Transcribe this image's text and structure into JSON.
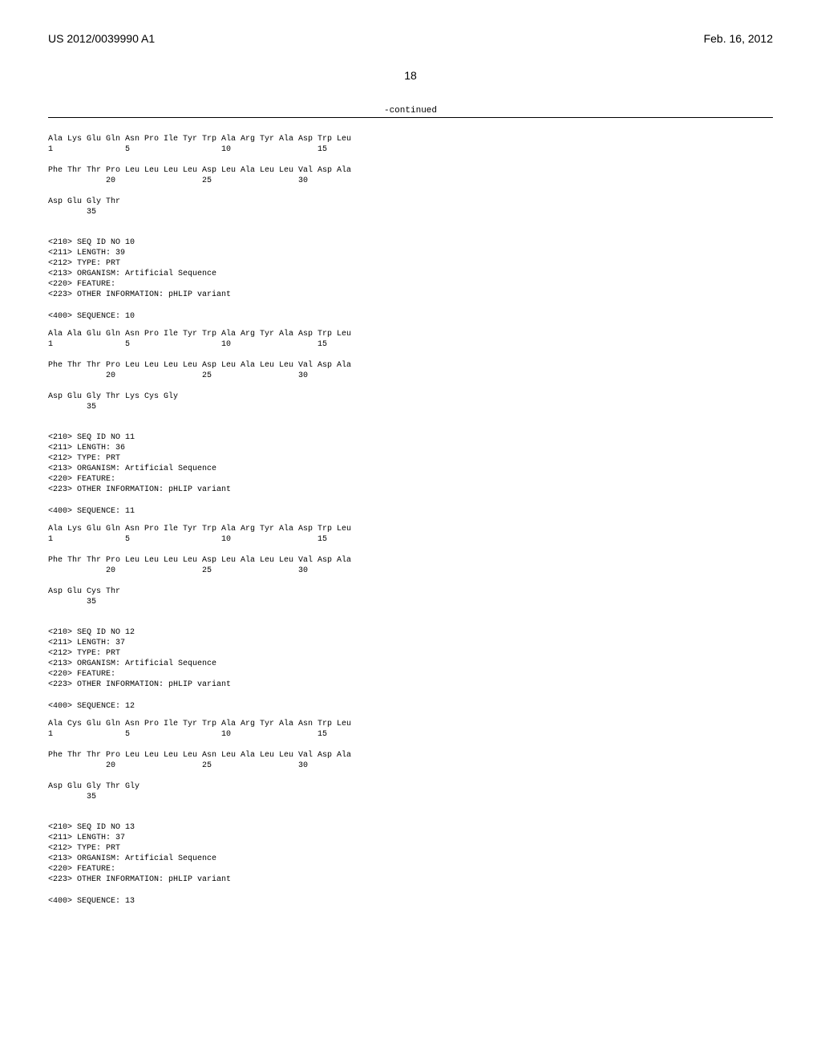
{
  "header": {
    "pub_number": "US 2012/0039990 A1",
    "date": "Feb. 16, 2012"
  },
  "page_number": "18",
  "continued_label": "-continued",
  "sequences": [
    {
      "lines": [
        "Ala Lys Glu Gln Asn Pro Ile Tyr Trp Ala Arg Tyr Ala Asp Trp Leu",
        "1               5                   10                  15",
        "",
        "Phe Thr Thr Pro Leu Leu Leu Leu Asp Leu Ala Leu Leu Val Asp Ala",
        "            20                  25                  30",
        "",
        "Asp Glu Gly Thr",
        "        35"
      ]
    }
  ],
  "entries": [
    {
      "meta": [
        "<210> SEQ ID NO 10",
        "<211> LENGTH: 39",
        "<212> TYPE: PRT",
        "<213> ORGANISM: Artificial Sequence",
        "<220> FEATURE:",
        "<223> OTHER INFORMATION: pHLIP variant"
      ],
      "seq_label": "<400> SEQUENCE: 10",
      "lines": [
        "Ala Ala Glu Gln Asn Pro Ile Tyr Trp Ala Arg Tyr Ala Asp Trp Leu",
        "1               5                   10                  15",
        "",
        "Phe Thr Thr Pro Leu Leu Leu Leu Asp Leu Ala Leu Leu Val Asp Ala",
        "            20                  25                  30",
        "",
        "Asp Glu Gly Thr Lys Cys Gly",
        "        35"
      ]
    },
    {
      "meta": [
        "<210> SEQ ID NO 11",
        "<211> LENGTH: 36",
        "<212> TYPE: PRT",
        "<213> ORGANISM: Artificial Sequence",
        "<220> FEATURE:",
        "<223> OTHER INFORMATION: pHLIP variant"
      ],
      "seq_label": "<400> SEQUENCE: 11",
      "lines": [
        "Ala Lys Glu Gln Asn Pro Ile Tyr Trp Ala Arg Tyr Ala Asp Trp Leu",
        "1               5                   10                  15",
        "",
        "Phe Thr Thr Pro Leu Leu Leu Leu Asp Leu Ala Leu Leu Val Asp Ala",
        "            20                  25                  30",
        "",
        "Asp Glu Cys Thr",
        "        35"
      ]
    },
    {
      "meta": [
        "<210> SEQ ID NO 12",
        "<211> LENGTH: 37",
        "<212> TYPE: PRT",
        "<213> ORGANISM: Artificial Sequence",
        "<220> FEATURE:",
        "<223> OTHER INFORMATION: pHLIP variant"
      ],
      "seq_label": "<400> SEQUENCE: 12",
      "lines": [
        "Ala Cys Glu Gln Asn Pro Ile Tyr Trp Ala Arg Tyr Ala Asn Trp Leu",
        "1               5                   10                  15",
        "",
        "Phe Thr Thr Pro Leu Leu Leu Leu Asn Leu Ala Leu Leu Val Asp Ala",
        "            20                  25                  30",
        "",
        "Asp Glu Gly Thr Gly",
        "        35"
      ]
    },
    {
      "meta": [
        "<210> SEQ ID NO 13",
        "<211> LENGTH: 37",
        "<212> TYPE: PRT",
        "<213> ORGANISM: Artificial Sequence",
        "<220> FEATURE:",
        "<223> OTHER INFORMATION: pHLIP variant"
      ],
      "seq_label": "<400> SEQUENCE: 13",
      "lines": []
    }
  ]
}
